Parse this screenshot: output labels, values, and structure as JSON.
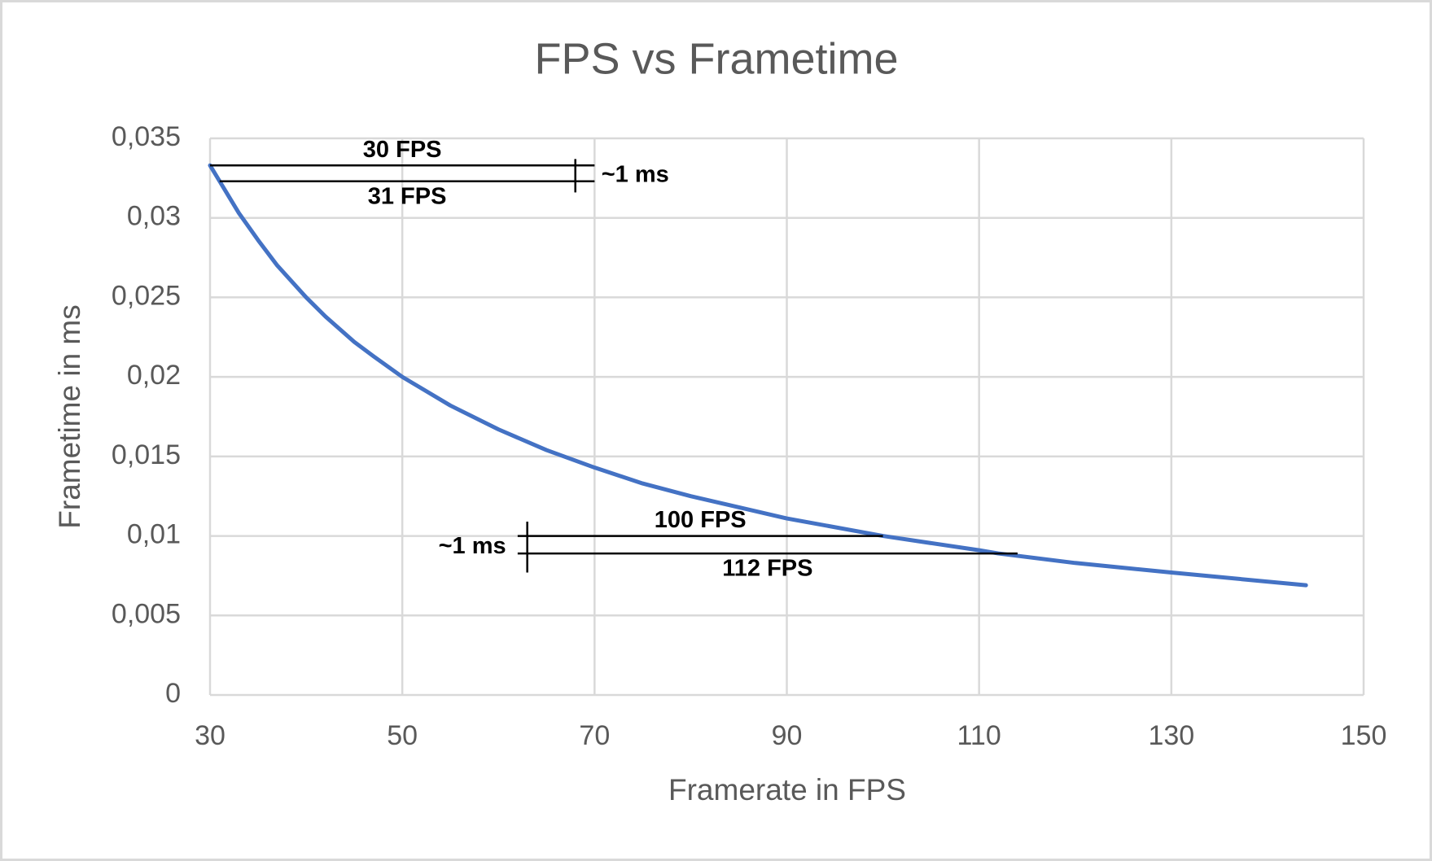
{
  "chart_data": {
    "type": "line",
    "title": "FPS vs Frametime",
    "x_label": "Framerate in FPS",
    "y_label": "Frametime in ms",
    "x": [
      30,
      31,
      32,
      33,
      35,
      37,
      40,
      42,
      45,
      47,
      50,
      55,
      60,
      65,
      70,
      75,
      80,
      90,
      100,
      110,
      112,
      120,
      130,
      144
    ],
    "series": [
      {
        "name": "Frametime",
        "color": "#4472c4",
        "values": [
          0.0333,
          0.0323,
          0.0313,
          0.0303,
          0.0286,
          0.027,
          0.025,
          0.0238,
          0.0222,
          0.0213,
          0.02,
          0.0182,
          0.0167,
          0.0154,
          0.0143,
          0.0133,
          0.0125,
          0.0111,
          0.01,
          0.0091,
          0.0089,
          0.0083,
          0.0077,
          0.0069
        ]
      }
    ],
    "xlim": [
      30,
      150
    ],
    "xticks": [
      30,
      50,
      70,
      90,
      110,
      130,
      150
    ],
    "ylim": [
      0,
      0.035
    ],
    "yticks": [
      0,
      {
        "value": 0.005,
        "label": "0,005"
      },
      {
        "value": 0.01,
        "label": "0,01"
      },
      {
        "value": 0.015,
        "label": "0,015"
      },
      {
        "value": 0.02,
        "label": "0,02"
      },
      {
        "value": 0.025,
        "label": "0,025"
      },
      {
        "value": 0.03,
        "label": "0,03"
      },
      {
        "value": 0.035,
        "label": "0,035"
      }
    ],
    "grid": true,
    "reference_lines": [
      {
        "label": "30 FPS",
        "y": 0.0333,
        "x": [
          30,
          70
        ]
      },
      {
        "label": "31 FPS",
        "y": 0.0323,
        "x": [
          31,
          70
        ]
      },
      {
        "label": "100 FPS",
        "y": 0.01,
        "x": [
          62,
          100
        ]
      },
      {
        "label": "112 FPS",
        "y": 0.0089,
        "x": [
          62,
          114
        ]
      }
    ],
    "annotations": [
      {
        "text": "~1 ms",
        "x": 68,
        "y": [
          0.0337,
          0.0316
        ]
      },
      {
        "text": "~1 ms",
        "x": 63,
        "y": [
          0.0109,
          0.0077
        ]
      }
    ]
  }
}
